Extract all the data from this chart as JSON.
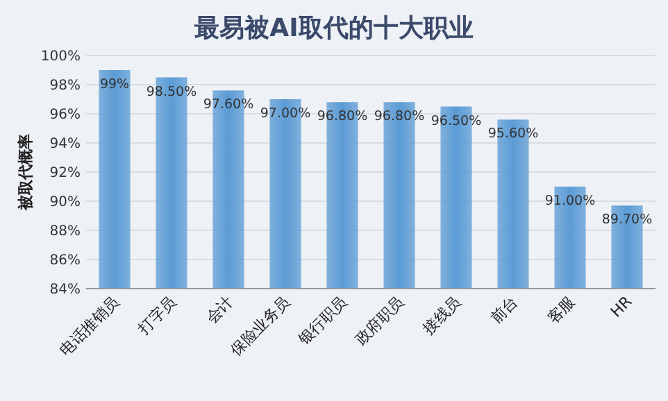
{
  "chart_data": {
    "type": "bar",
    "title": "最易被AI取代的十大职业",
    "ylabel": "被取代概率",
    "categories": [
      "电话推销员",
      "打字员",
      "会计",
      "保险业务员",
      "银行职员",
      "政府职员",
      "接线员",
      "前台",
      "客服",
      "HR"
    ],
    "values": [
      99,
      98.5,
      97.6,
      97.0,
      96.8,
      96.8,
      96.5,
      95.6,
      91.0,
      89.7
    ],
    "value_labels": [
      "99%",
      "98.50%",
      "97.60%",
      "97.00%",
      "96.80%",
      "96.80%",
      "96.50%",
      "95.60%",
      "91.00%",
      "89.70%"
    ],
    "color": "#5b9bd5",
    "ylim": [
      84,
      100
    ],
    "yticks": [
      {
        "value": 84,
        "label": "84%"
      },
      {
        "value": 86,
        "label": "86%"
      },
      {
        "value": 88,
        "label": "88%"
      },
      {
        "value": 90,
        "label": "90%"
      },
      {
        "value": 92,
        "label": "92%"
      },
      {
        "value": 94,
        "label": "94%"
      },
      {
        "value": 96,
        "label": "96%"
      },
      {
        "value": 98,
        "label": "98%"
      },
      {
        "value": 100,
        "label": "100%"
      }
    ],
    "grid": "y"
  }
}
